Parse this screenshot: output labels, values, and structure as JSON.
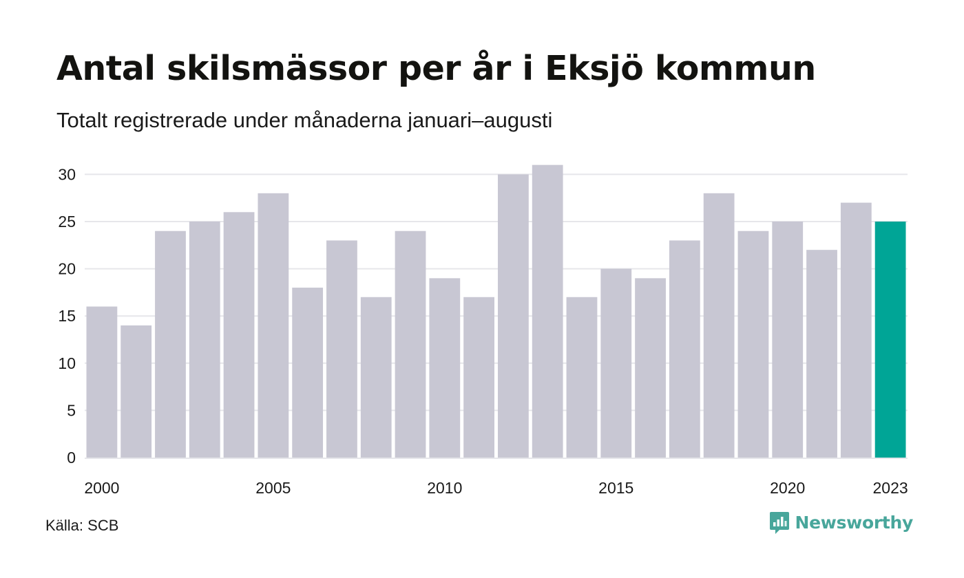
{
  "title": "Antal skilsmässor per år i Eksjö kommun",
  "subtitle": "Totalt registrerade under månaderna januari–augusti",
  "source": "Källa: SCB",
  "brand": {
    "name": "Newsworthy",
    "icon": "newsworthy-logo-icon",
    "color": "#48a69b"
  },
  "chart_data": {
    "type": "bar",
    "categories": [
      "2000",
      "2001",
      "2002",
      "2003",
      "2004",
      "2005",
      "2006",
      "2007",
      "2008",
      "2009",
      "2010",
      "2011",
      "2012",
      "2013",
      "2014",
      "2015",
      "2016",
      "2017",
      "2018",
      "2019",
      "2020",
      "2021",
      "2022",
      "2023"
    ],
    "values": [
      16,
      14,
      24,
      25,
      26,
      28,
      18,
      23,
      17,
      24,
      19,
      17,
      30,
      31,
      17,
      20,
      19,
      23,
      28,
      24,
      25,
      22,
      27,
      25
    ],
    "x_tick_labels": [
      "2000",
      "2005",
      "2010",
      "2015",
      "2020",
      "2023"
    ],
    "y_ticks": [
      0,
      5,
      10,
      15,
      20,
      25,
      30
    ],
    "ylim": [
      0,
      31
    ],
    "grid": true,
    "highlight_category": "2023",
    "colors": {
      "bar": "#c8c7d3",
      "highlight": "#00a596",
      "grid": "#e6e6ea"
    }
  }
}
